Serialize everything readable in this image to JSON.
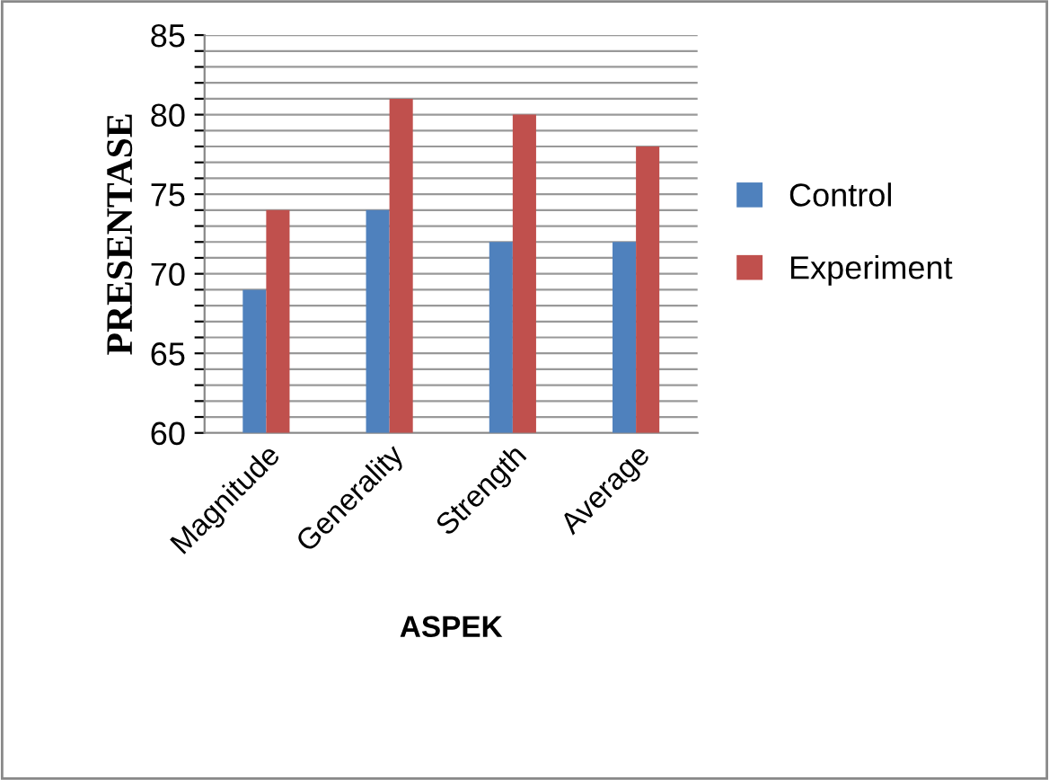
{
  "chart_data": {
    "type": "bar",
    "xlabel": "ASPEK",
    "ylabel": "PRESENTASE",
    "categories": [
      "Magnitude",
      "Generality",
      "Strength",
      "Average"
    ],
    "series": [
      {
        "name": "Control",
        "color": "#4f81bd",
        "values": [
          69,
          74,
          72,
          72
        ]
      },
      {
        "name": "Experiment",
        "color": "#c0504d",
        "values": [
          74,
          81,
          80,
          78
        ]
      }
    ],
    "ylim": [
      60,
      85
    ],
    "yticks": [
      60,
      {
        "value": 61,
        "label": null
      },
      {
        "value": 62,
        "label": null
      },
      {
        "value": 63,
        "label": null
      },
      {
        "value": 64,
        "label": null
      },
      65,
      {
        "value": 66,
        "label": null
      },
      {
        "value": 67,
        "label": null
      },
      {
        "value": 68,
        "label": null
      },
      {
        "value": 69,
        "label": null
      },
      70,
      {
        "value": 71,
        "label": null
      },
      {
        "value": 72,
        "label": null
      },
      {
        "value": 73,
        "label": null
      },
      {
        "value": 74,
        "label": null
      },
      75,
      {
        "value": 76,
        "label": null
      },
      {
        "value": 77,
        "label": null
      },
      {
        "value": 78,
        "label": null
      },
      {
        "value": 79,
        "label": null
      },
      80,
      {
        "value": 81,
        "label": null
      },
      {
        "value": 82,
        "label": null
      },
      {
        "value": 83,
        "label": null
      },
      {
        "value": 84,
        "label": null
      },
      85
    ],
    "grid": "y",
    "legend": "right"
  }
}
